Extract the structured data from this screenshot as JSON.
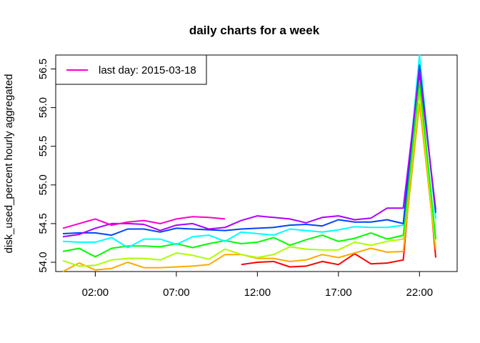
{
  "chart_data": {
    "type": "line",
    "title": "daily charts for a week",
    "xlabel": "",
    "ylabel": "disk_used_percent hourly aggregated",
    "x_tick_labels": [
      "02:00",
      "07:00",
      "12:00",
      "17:00",
      "22:00"
    ],
    "x_tick_hours": [
      2,
      7,
      12,
      17,
      22
    ],
    "x_range_hours": [
      0,
      23
    ],
    "y_ticks": [
      "54.0",
      "54.5",
      "55.0",
      "55.5",
      "56.0",
      "56.5"
    ],
    "y_tick_values": [
      54.0,
      54.5,
      55.0,
      55.5,
      56.0,
      56.5
    ],
    "ylim": [
      53.88,
      56.68
    ],
    "grid": false,
    "legend_position": "top-left",
    "legend": [
      {
        "label": "last day: 2015-03-18",
        "color": "#ff00cc"
      }
    ],
    "hours": [
      0,
      1,
      2,
      3,
      4,
      5,
      6,
      7,
      8,
      9,
      10,
      11,
      12,
      13,
      14,
      15,
      16,
      17,
      18,
      19,
      20,
      21,
      22,
      23
    ],
    "series": [
      {
        "color": "#ff0000",
        "values": [
          null,
          null,
          null,
          null,
          null,
          null,
          null,
          null,
          null,
          null,
          null,
          53.97,
          54.0,
          54.01,
          53.94,
          53.95,
          54.01,
          53.97,
          54.11,
          53.98,
          53.99,
          54.03,
          56.4,
          54.06
        ]
      },
      {
        "color": "#ffaa00",
        "values": [
          53.88,
          53.99,
          53.9,
          53.92,
          54.0,
          53.93,
          53.93,
          53.94,
          53.95,
          53.97,
          54.1,
          54.1,
          54.05,
          54.05,
          54.01,
          54.03,
          54.1,
          54.06,
          54.12,
          54.18,
          54.13,
          54.14,
          56.05,
          54.16
        ]
      },
      {
        "color": "#aaff00",
        "values": [
          54.02,
          53.95,
          53.96,
          54.03,
          54.05,
          54.05,
          54.03,
          54.12,
          54.09,
          54.04,
          54.17,
          54.1,
          54.06,
          54.1,
          54.2,
          54.17,
          54.16,
          54.16,
          54.26,
          54.22,
          54.27,
          54.3,
          56.22,
          54.22
        ]
      },
      {
        "color": "#00ff00",
        "values": [
          54.14,
          54.18,
          54.07,
          54.18,
          54.21,
          54.21,
          54.2,
          54.24,
          54.19,
          54.24,
          54.28,
          54.24,
          54.26,
          54.32,
          54.22,
          54.29,
          54.35,
          54.27,
          54.31,
          54.38,
          54.3,
          54.35,
          56.35,
          54.3
        ]
      },
      {
        "color": "#00ffff",
        "values": [
          54.27,
          54.26,
          54.26,
          54.32,
          54.19,
          54.3,
          54.3,
          54.23,
          54.33,
          54.35,
          54.27,
          54.39,
          54.37,
          54.35,
          54.43,
          54.41,
          54.39,
          54.42,
          54.46,
          54.45,
          54.45,
          54.48,
          56.68,
          54.56
        ]
      },
      {
        "color": "#0044ff",
        "values": [
          54.37,
          54.38,
          54.38,
          54.35,
          54.43,
          54.43,
          54.39,
          54.44,
          54.43,
          54.42,
          54.41,
          54.43,
          54.44,
          54.45,
          54.48,
          54.49,
          54.47,
          54.55,
          54.52,
          54.52,
          54.55,
          54.5,
          56.55,
          54.64
        ]
      },
      {
        "color": "#aa00ff",
        "values": [
          54.33,
          54.36,
          54.44,
          54.5,
          54.5,
          54.49,
          54.41,
          54.48,
          54.5,
          54.43,
          54.45,
          54.54,
          54.6,
          54.58,
          54.56,
          54.51,
          54.58,
          54.6,
          54.55,
          54.57,
          54.7,
          54.7,
          56.47,
          54.68
        ]
      },
      {
        "color": "#ff00cc",
        "values": [
          54.44,
          54.5,
          54.56,
          54.48,
          54.52,
          54.54,
          54.5,
          54.56,
          54.59,
          54.58,
          54.56,
          null,
          null,
          null,
          null,
          null,
          null,
          null,
          null,
          null,
          null,
          null,
          null,
          null
        ]
      }
    ]
  }
}
